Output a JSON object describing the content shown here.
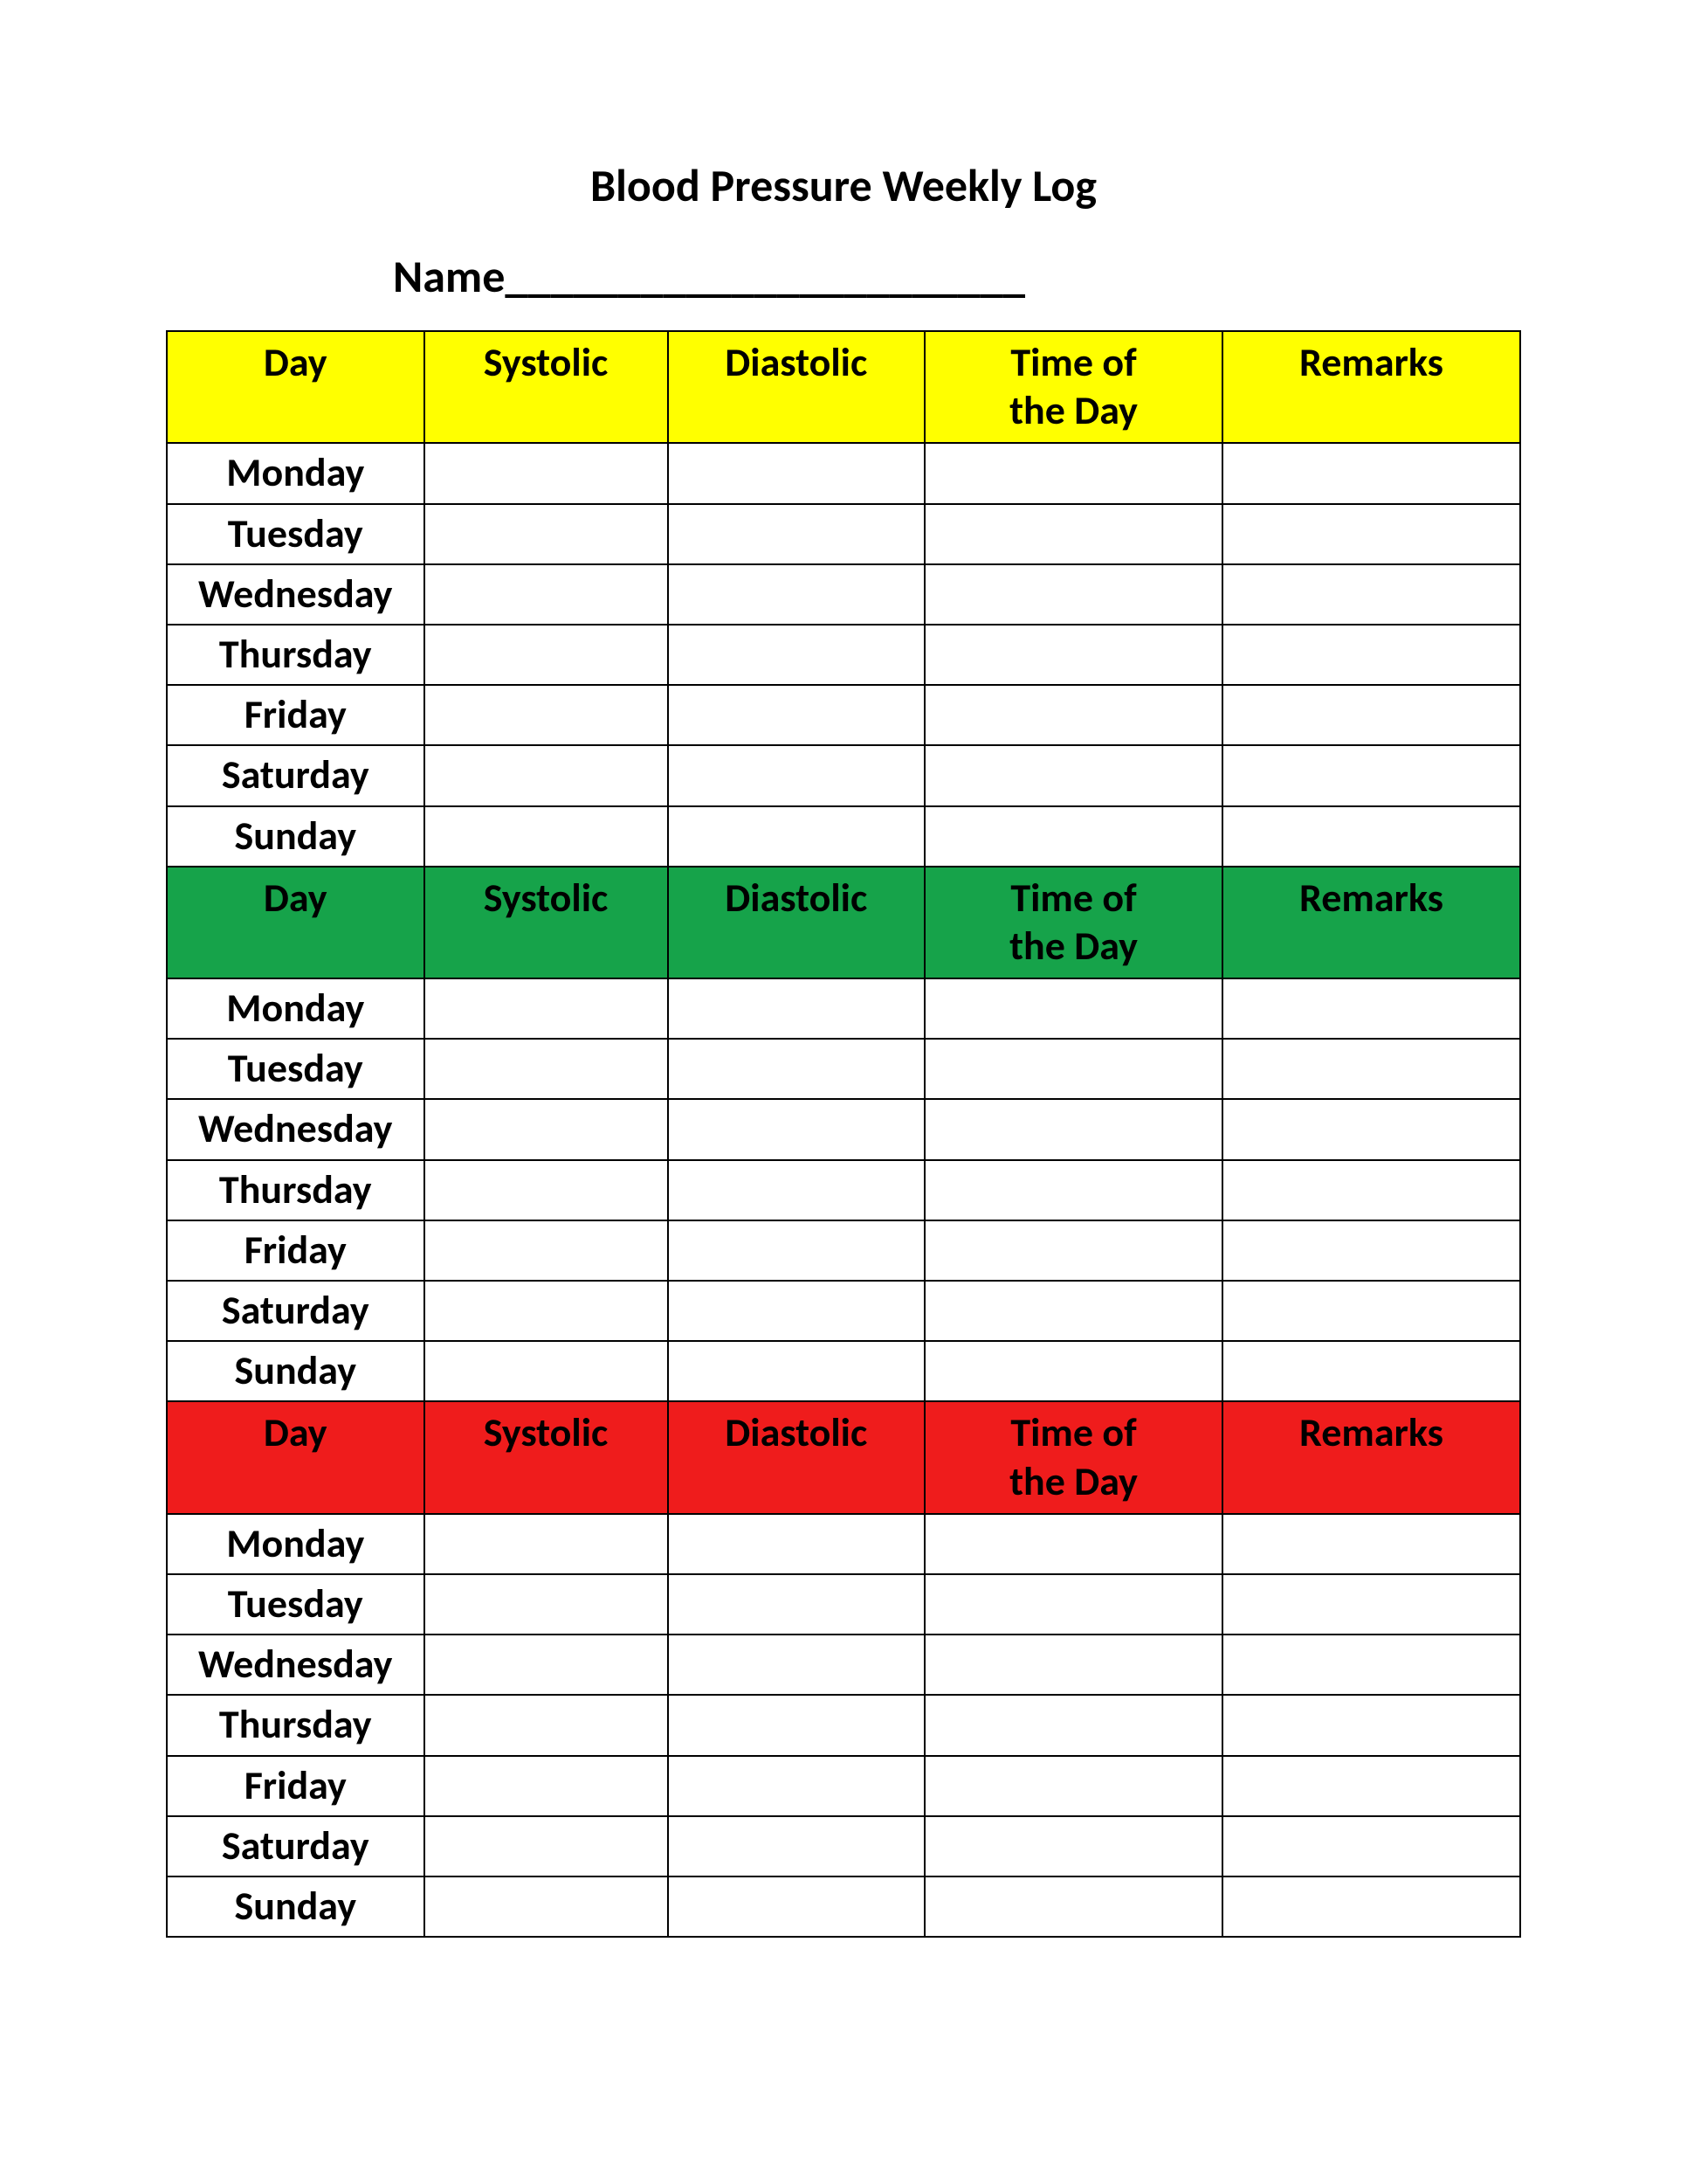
{
  "title": "Blood Pressure Weekly Log",
  "name_label": "Name_______________________",
  "columns": [
    "Day",
    "Systolic",
    "Diastolic",
    "Time of the Day",
    "Remarks"
  ],
  "days": [
    "Monday",
    "Tuesday",
    "Wednesday",
    "Thursday",
    "Friday",
    "Saturday",
    "Sunday"
  ],
  "sections": [
    {
      "header_bg": "#ffff00",
      "header_fg": "#000000"
    },
    {
      "header_bg": "#16a34a",
      "header_fg": "#000000"
    },
    {
      "header_bg": "#ef1c1c",
      "header_fg": "#000000"
    }
  ],
  "background_color": "#ffffff",
  "border_color": "#000000"
}
